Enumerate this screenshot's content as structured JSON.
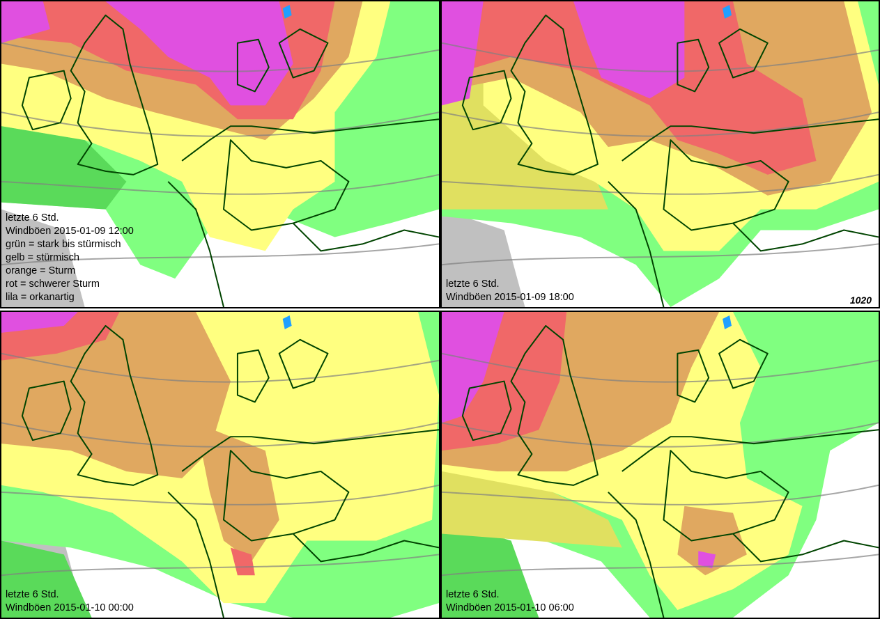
{
  "colors": {
    "green": "#80ff80",
    "dark_green": "#5ada5a",
    "yellow": "#ffff80",
    "olive": "#e0e060",
    "orange": "#e0a860",
    "red": "#f06868",
    "lila": "#e050e0",
    "land_gray": "#c0c0c0",
    "coast": "#004400",
    "isobar": "#808080"
  },
  "panels": [
    {
      "lines": [
        "letzte 6 Std.",
        "Windböen 2015-01-09 12:00",
        "grün = stark bis stürmisch",
        "gelb = stürmisch",
        "orange = Sturm",
        "rot = schwerer Sturm",
        "lila = orkanartig"
      ]
    },
    {
      "lines": [
        "letzte 6 Std.",
        "Windböen 2015-01-09 18:00"
      ],
      "isobar_label": "1020"
    },
    {
      "lines": [
        "letzte 6 Std.",
        "Windböen 2015-01-10 00:00"
      ]
    },
    {
      "lines": [
        "letzte 6 Std.",
        "Windböen 2015-01-10 06:00"
      ]
    }
  ]
}
